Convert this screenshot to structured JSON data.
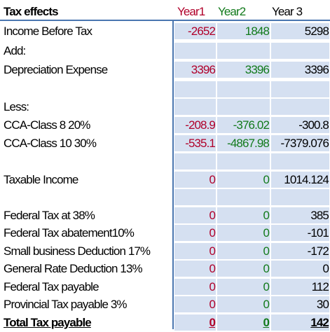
{
  "header": {
    "title": "Tax effects",
    "year1": "Year1",
    "year2": "Year2",
    "year3": "Year 3"
  },
  "colors": {
    "year1": "#b0002a",
    "year2": "#127a1c",
    "grid": "#4a76b0",
    "band": "#d5e0f1"
  },
  "rows": [
    {
      "label": "Income Before Tax",
      "y1": "-2652",
      "y2": "1848",
      "y3": "5298"
    },
    {
      "label": "Add:",
      "y1": "",
      "y2": "",
      "y3": ""
    },
    {
      "label": "Depreciation Expense",
      "y1": "3396",
      "y2": "3396",
      "y3": "3396"
    },
    {
      "label": "",
      "y1": "",
      "y2": "",
      "y3": ""
    },
    {
      "label": "Less:",
      "y1": "",
      "y2": "",
      "y3": ""
    },
    {
      "label": "CCA-Class 8 20%",
      "y1": "-208.9",
      "y2": "-376.02",
      "y3": "-300.8"
    },
    {
      "label": "CCA-Class 10 30%",
      "y1": "-535.1",
      "y2": "-4867.98",
      "y3": "-7379.076"
    },
    {
      "label": "",
      "y1": "",
      "y2": "",
      "y3": ""
    },
    {
      "label": "Taxable Income",
      "y1": "0",
      "y2": "0",
      "y3": "1014.124"
    },
    {
      "label": "",
      "y1": "",
      "y2": "",
      "y3": ""
    },
    {
      "label": "Federal Tax at 38%",
      "y1": "0",
      "y2": "0",
      "y3": "385"
    },
    {
      "label": "Federal Tax abatement10%",
      "y1": "0",
      "y2": "0",
      "y3": "-101"
    },
    {
      "label": "Small business Deduction 17%",
      "y1": "0",
      "y2": "0",
      "y3": "-172"
    },
    {
      "label": "General Rate Deduction 13%",
      "y1": "0",
      "y2": "0",
      "y3": "0"
    },
    {
      "label": "Federal Tax payable",
      "y1": "0",
      "y2": "0",
      "y3": "112"
    },
    {
      "label": "Provincial Tax payable 3%",
      "y1": "0",
      "y2": "0",
      "y3": "30"
    },
    {
      "label": "Total Tax payable",
      "y1": "0",
      "y2": "0",
      "y3": "142"
    }
  ]
}
